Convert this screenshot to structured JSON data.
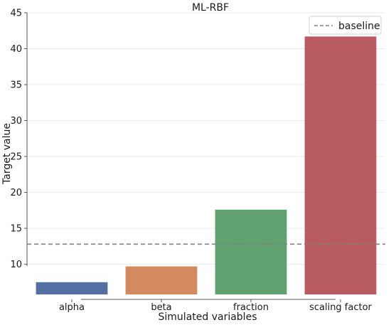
{
  "chart_data": {
    "type": "bar",
    "title": "ML-RBF",
    "xlabel": "Simulated variables",
    "ylabel": "Target value",
    "categories": [
      "alpha",
      "beta",
      "fraction",
      "scaling factor"
    ],
    "values": [
      7.5,
      9.7,
      17.6,
      41.7
    ],
    "colors": [
      "#5470a3",
      "#d38a60",
      "#5fa16f",
      "#b85c62"
    ],
    "ylim": [
      5.8,
      45
    ],
    "yticks": [
      10,
      15,
      20,
      25,
      30,
      35,
      40,
      45
    ],
    "grid": true,
    "baseline": {
      "label": "baseline",
      "value": 12.8,
      "color": "#808080",
      "style": "dashed"
    },
    "legend_position": "top-right"
  }
}
